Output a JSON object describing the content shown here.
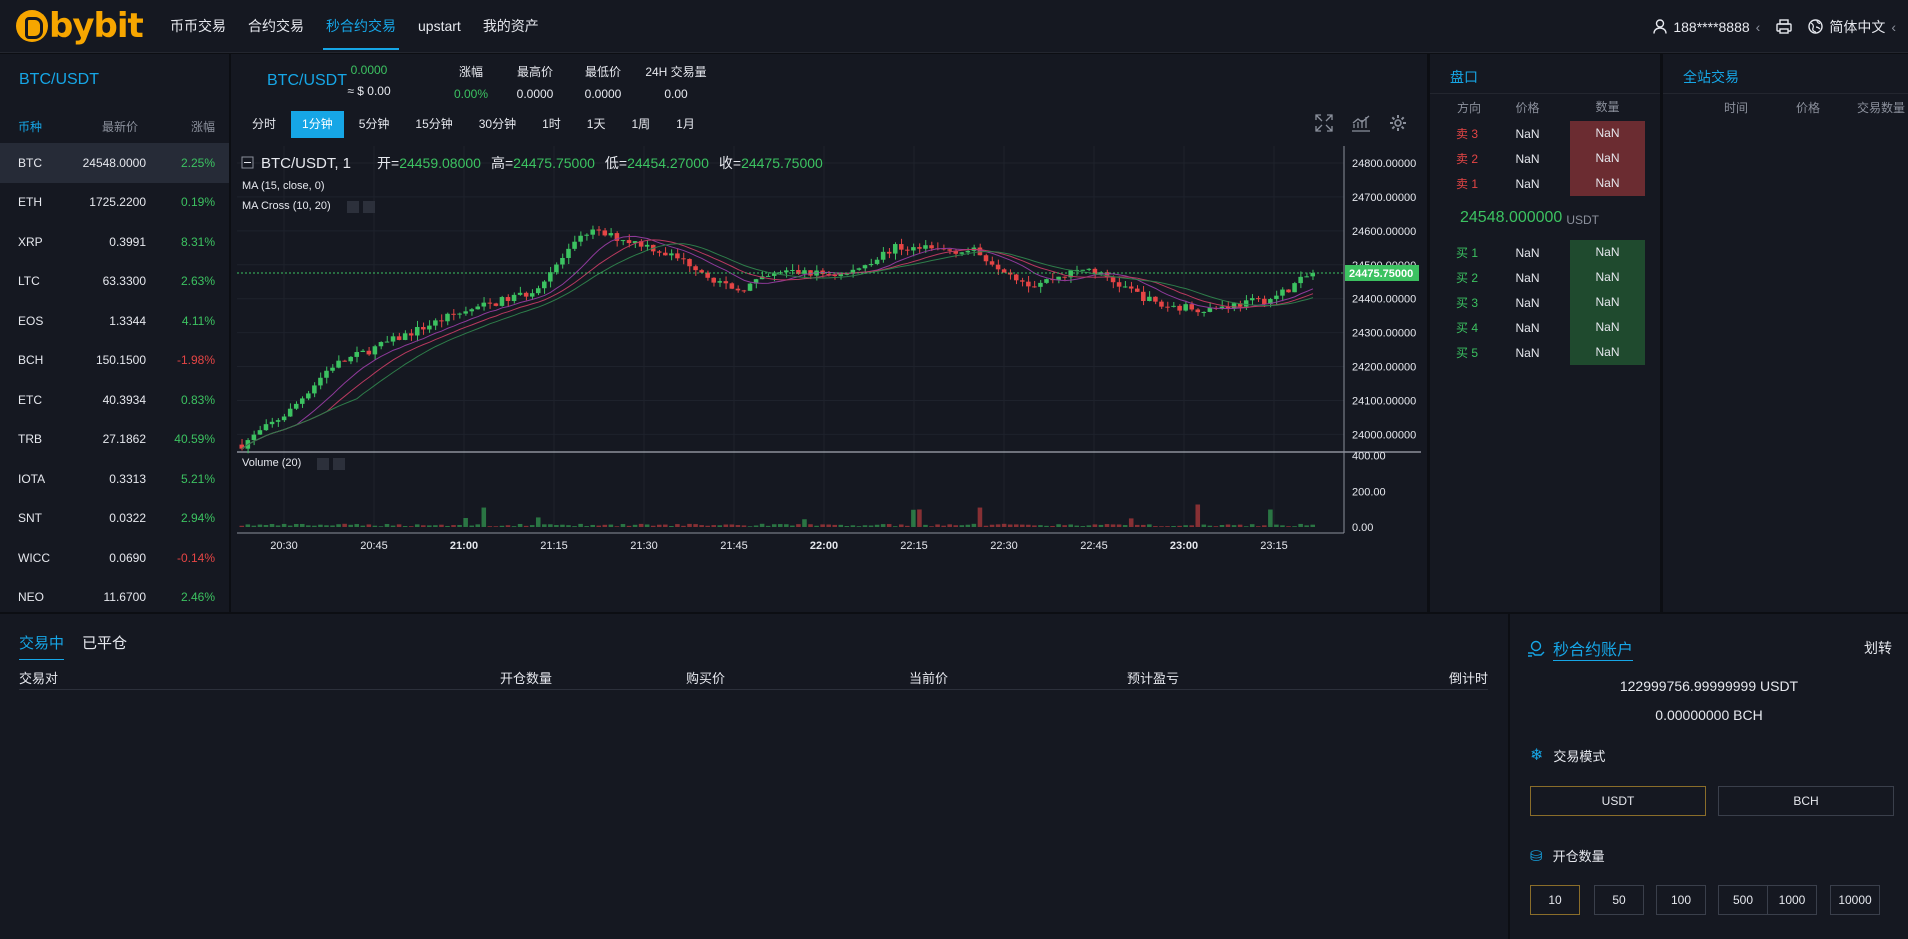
{
  "brand": {
    "name": "bybit",
    "accent": "#16a6e6",
    "logo_color": "#f7a600"
  },
  "nav": {
    "items": [
      "币币交易",
      "合约交易",
      "秒合约交易",
      "upstart",
      "我的资产"
    ],
    "active": 2
  },
  "top_right": {
    "user": "188****8888",
    "language": "简体中文"
  },
  "market_list": {
    "pair": "BTC/USDT",
    "headers": [
      "币种",
      "最新价",
      "涨幅"
    ],
    "rows": [
      {
        "sym": "BTC",
        "price": "24548.0000",
        "chg": "2.25%",
        "dir": "up"
      },
      {
        "sym": "ETH",
        "price": "1725.2200",
        "chg": "0.19%",
        "dir": "up"
      },
      {
        "sym": "XRP",
        "price": "0.3991",
        "chg": "8.31%",
        "dir": "up"
      },
      {
        "sym": "LTC",
        "price": "63.3300",
        "chg": "2.63%",
        "dir": "up"
      },
      {
        "sym": "EOS",
        "price": "1.3344",
        "chg": "4.11%",
        "dir": "up"
      },
      {
        "sym": "BCH",
        "price": "150.1500",
        "chg": "-1.98%",
        "dir": "down"
      },
      {
        "sym": "ETC",
        "price": "40.3934",
        "chg": "0.83%",
        "dir": "up"
      },
      {
        "sym": "TRB",
        "price": "27.1862",
        "chg": "40.59%",
        "dir": "up"
      },
      {
        "sym": "IOTA",
        "price": "0.3313",
        "chg": "5.21%",
        "dir": "up"
      },
      {
        "sym": "SNT",
        "price": "0.0322",
        "chg": "2.94%",
        "dir": "up"
      },
      {
        "sym": "WICC",
        "price": "0.0690",
        "chg": "-0.14%",
        "dir": "down"
      },
      {
        "sym": "NEO",
        "price": "11.6700",
        "chg": "2.46%",
        "dir": "up"
      }
    ]
  },
  "ticker": {
    "pair": "BTC/USDT",
    "price": "0.0000",
    "price_usd": "≈ $ 0.00",
    "change_label": "涨幅",
    "change": "0.00%",
    "high_label": "最高价",
    "high": "0.0000",
    "low_label": "最低价",
    "low": "0.0000",
    "vol_label": "24H 交易量",
    "vol": "0.00"
  },
  "timeframes": [
    "分时",
    "1分钟",
    "5分钟",
    "15分钟",
    "30分钟",
    "1时",
    "1天",
    "1周",
    "1月"
  ],
  "active_timeframe": 1,
  "chart_legend": {
    "symbol": "BTC/USDT, 1",
    "open_label": "开=",
    "open": "24459.08000",
    "high_label": "高=",
    "high": "24475.75000",
    "low_label": "低=",
    "low": "24454.27000",
    "close_label": "收=",
    "close": "24475.75000",
    "ma": "MA (15, close, 0)",
    "ma_cross": "MA Cross (10, 20)",
    "volume": "Volume (20)"
  },
  "chart_data": {
    "type": "candlestick",
    "price_axis": [
      "24800.00000",
      "24700.00000",
      "24600.00000",
      "24500.00000",
      "24400.00000",
      "24300.00000",
      "24200.00000",
      "24100.00000",
      "24000.00000"
    ],
    "price_range": [
      23960,
      24850
    ],
    "last_price": "24475.75000",
    "last_value": 24475.75,
    "volume_axis": [
      "400.00",
      "200.00",
      "0.00"
    ],
    "volume_range": [
      0,
      420
    ],
    "time_axis": [
      "20:30",
      "20:45",
      "21:00",
      "21:15",
      "21:30",
      "21:45",
      "22:00",
      "22:15",
      "22:30",
      "22:45",
      "23:00",
      "23:15"
    ],
    "bold_times": [
      "21:00",
      "22:00",
      "23:00"
    ],
    "candles": 178,
    "start": 23970,
    "end": 24476,
    "up_color": "#3cc261",
    "down_color": "#e54545"
  },
  "order_book": {
    "title": "盘口",
    "headers": [
      "方向",
      "价格",
      "数量"
    ],
    "asks": [
      {
        "side": "卖 3",
        "price": "NaN",
        "qty": "NaN"
      },
      {
        "side": "卖 2",
        "price": "NaN",
        "qty": "NaN"
      },
      {
        "side": "卖 1",
        "price": "NaN",
        "qty": "NaN"
      }
    ],
    "last_price": "24548.000000",
    "last_unit": "USDT",
    "bids": [
      {
        "side": "买 1",
        "price": "NaN",
        "qty": "NaN"
      },
      {
        "side": "买 2",
        "price": "NaN",
        "qty": "NaN"
      },
      {
        "side": "买 3",
        "price": "NaN",
        "qty": "NaN"
      },
      {
        "side": "买 4",
        "price": "NaN",
        "qty": "NaN"
      },
      {
        "side": "买 5",
        "price": "NaN",
        "qty": "NaN"
      }
    ]
  },
  "trades": {
    "title": "全站交易",
    "headers": [
      "时间",
      "价格",
      "交易数量"
    ]
  },
  "orders": {
    "tabs": [
      "交易中",
      "已平仓"
    ],
    "headers": [
      "交易对",
      "开仓数量",
      "购买价",
      "当前价",
      "预计盈亏",
      "倒计时"
    ]
  },
  "account": {
    "title": "秒合约账户",
    "transfer": "划转",
    "balance_usdt": "122999756.99999999 USDT",
    "balance_bch": "0.00000000 BCH",
    "mode_label": "交易模式",
    "modes": [
      "USDT",
      "BCH"
    ],
    "qty_label": "开仓数量",
    "quantities": [
      "10",
      "50",
      "100",
      "500",
      "1000",
      "10000"
    ]
  }
}
